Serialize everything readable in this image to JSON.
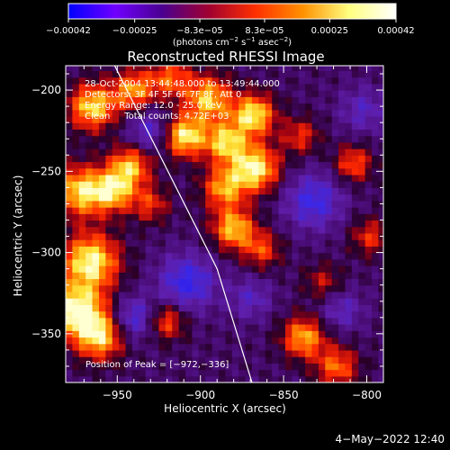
{
  "chart_data": {
    "type": "heatmap",
    "title": "Reconstructed RHESSI Image",
    "xlabel": "Heliocentric X (arcsec)",
    "ylabel": "Heliocentric Y (arcsec)",
    "xlim": [
      -981,
      -790
    ],
    "ylim": [
      -380,
      -185
    ],
    "x_ticks": [
      -950,
      -900,
      -850,
      -800
    ],
    "x_tick_labels": [
      "−950",
      "−900",
      "−850",
      "−800"
    ],
    "y_ticks": [
      -200,
      -250,
      -300,
      -350
    ],
    "y_tick_labels": [
      "−200",
      "−250",
      "−300",
      "−350"
    ],
    "colorbar": {
      "range": [
        -0.00042,
        0.00042
      ],
      "tick_values": [
        -0.00042,
        -0.00025,
        -8.3e-05,
        8.3e-05,
        0.00025,
        0.00042
      ],
      "tick_labels": [
        "−0.00042",
        "−0.00025",
        "−8.3e−05",
        "8.3e−05",
        "0.00025",
        "0.00042"
      ],
      "unit_label": {
        "text1": "(photons cm",
        "sup1": "−2",
        "text2": " s",
        "sup2": "−1",
        "text3": " asec",
        "sup3": "−2",
        "text4": ")"
      },
      "colors": [
        "#0000ff",
        "#7000ff",
        "#4a0090",
        "#a00030",
        "#ff3000",
        "#ff9000",
        "#ffff80",
        "#ffffff"
      ]
    },
    "annotations": {
      "time_range": "28-Oct-2004 13:44:48.000 to 13:49:44.000",
      "detectors": "Detectors: 3F 4F 5F 6F 7F 8F, Att 0",
      "energy": "Energy Range: 12.0 - 25.0 keV",
      "method": "Clean     Total counts: 4.72E+03",
      "peak": "Position of Peak = [−972,−336]"
    },
    "peak_position": [
      -972,
      -336
    ],
    "limb": [
      [
        -954,
        -180
      ],
      [
        -890,
        -310
      ],
      [
        -869,
        -380
      ]
    ],
    "hotspots": [
      {
        "x": -965,
        "y": -210,
        "amp": 0.85,
        "s": 10
      },
      {
        "x": -940,
        "y": -200,
        "amp": 0.7,
        "s": 9
      },
      {
        "x": -918,
        "y": -192,
        "amp": 0.55,
        "s": 9
      },
      {
        "x": -895,
        "y": -205,
        "amp": 0.8,
        "s": 10
      },
      {
        "x": -910,
        "y": -228,
        "amp": 0.95,
        "s": 9
      },
      {
        "x": -885,
        "y": -232,
        "amp": 0.8,
        "s": 9
      },
      {
        "x": -868,
        "y": -215,
        "amp": 0.9,
        "s": 9
      },
      {
        "x": -867,
        "y": -248,
        "amp": 0.95,
        "s": 10
      },
      {
        "x": -886,
        "y": -260,
        "amp": 0.7,
        "s": 9
      },
      {
        "x": -880,
        "y": -285,
        "amp": 0.8,
        "s": 9
      },
      {
        "x": -863,
        "y": -298,
        "amp": 0.5,
        "s": 8
      },
      {
        "x": -942,
        "y": -246,
        "amp": 0.75,
        "s": 9
      },
      {
        "x": -952,
        "y": -262,
        "amp": 0.75,
        "s": 9
      },
      {
        "x": -930,
        "y": -270,
        "amp": 0.45,
        "s": 8
      },
      {
        "x": -972,
        "y": -262,
        "amp": 0.85,
        "s": 11
      },
      {
        "x": -966,
        "y": -305,
        "amp": 0.95,
        "s": 12
      },
      {
        "x": -974,
        "y": -336,
        "amp": 1.0,
        "s": 12
      },
      {
        "x": -960,
        "y": -352,
        "amp": 0.75,
        "s": 10
      },
      {
        "x": -920,
        "y": -342,
        "amp": 0.55,
        "s": 8
      },
      {
        "x": -838,
        "y": -352,
        "amp": 0.75,
        "s": 9
      },
      {
        "x": -818,
        "y": -370,
        "amp": 0.6,
        "s": 9
      },
      {
        "x": -840,
        "y": -228,
        "amp": 0.45,
        "s": 8
      },
      {
        "x": -808,
        "y": -245,
        "amp": 0.55,
        "s": 8
      },
      {
        "x": -798,
        "y": -290,
        "amp": 0.45,
        "s": 8
      },
      {
        "x": -826,
        "y": -318,
        "amp": 0.35,
        "s": 8
      }
    ],
    "negative_regions": [
      {
        "x": -930,
        "y": -225,
        "amp": 0.45,
        "s": 10
      },
      {
        "x": -908,
        "y": -318,
        "amp": 0.6,
        "s": 12
      },
      {
        "x": -940,
        "y": -340,
        "amp": 0.5,
        "s": 9
      },
      {
        "x": -832,
        "y": -268,
        "amp": 0.55,
        "s": 12
      },
      {
        "x": -815,
        "y": -335,
        "amp": 0.35,
        "s": 9
      },
      {
        "x": -870,
        "y": -328,
        "amp": 0.35,
        "s": 9
      },
      {
        "x": -802,
        "y": -212,
        "amp": 0.35,
        "s": 10
      }
    ]
  },
  "date_stamp": "4−May−2022 12:40"
}
